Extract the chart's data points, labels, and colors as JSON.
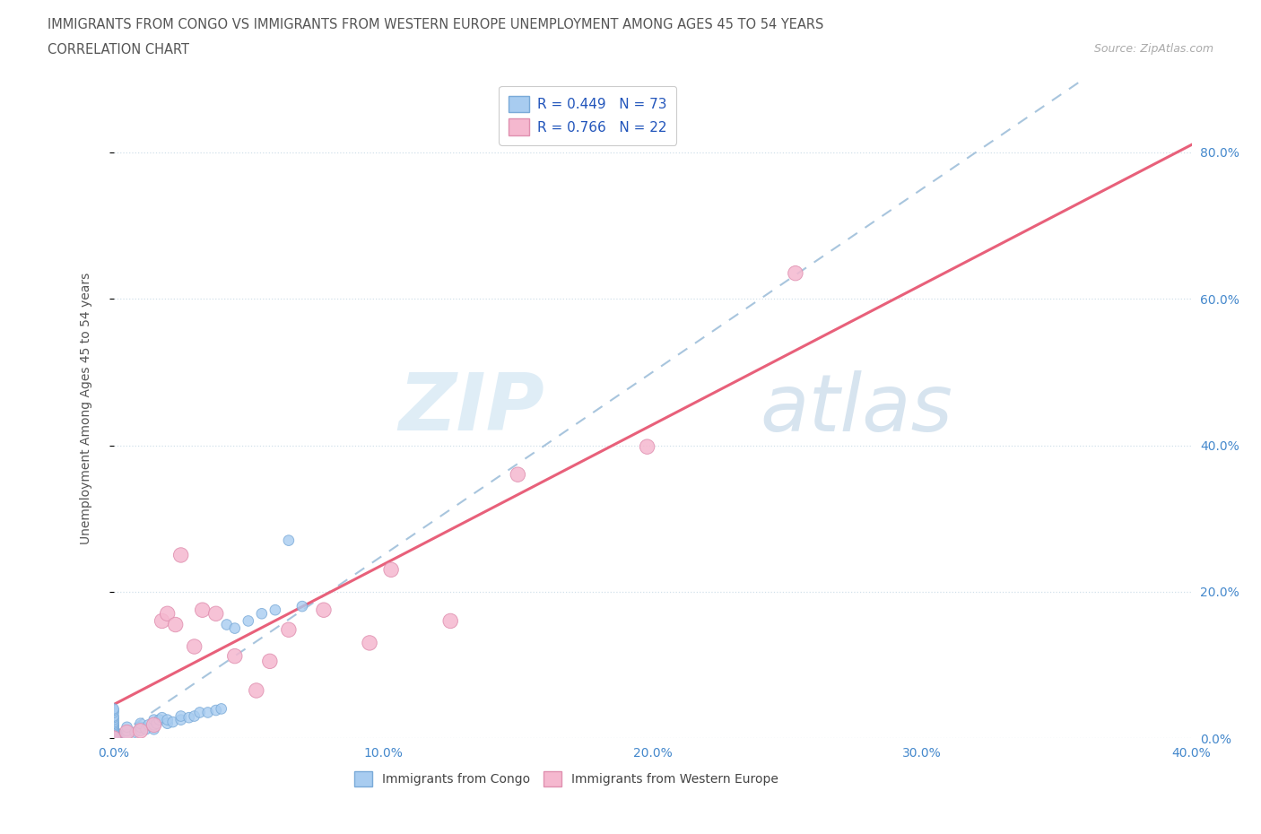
{
  "title_line1": "IMMIGRANTS FROM CONGO VS IMMIGRANTS FROM WESTERN EUROPE UNEMPLOYMENT AMONG AGES 45 TO 54 YEARS",
  "title_line2": "CORRELATION CHART",
  "source": "Source: ZipAtlas.com",
  "ylabel": "Unemployment Among Ages 45 to 54 years",
  "watermark_zip": "ZIP",
  "watermark_atlas": "atlas",
  "legend_r1": "0.449",
  "legend_n1": "73",
  "legend_r2": "0.766",
  "legend_n2": "22",
  "color_congo": "#a8ccf0",
  "color_congo_edge": "#7aaad8",
  "color_we": "#f5b8cf",
  "color_we_edge": "#e090b0",
  "color_line_congo": "#99bbd8",
  "color_line_we": "#e8607a",
  "color_axis": "#4488cc",
  "xmax": 0.4,
  "ymax": 0.9,
  "congo_x": [
    0.0,
    0.0,
    0.0,
    0.0,
    0.0,
    0.0,
    0.0,
    0.0,
    0.0,
    0.0,
    0.0,
    0.0,
    0.0,
    0.0,
    0.0,
    0.0,
    0.0,
    0.0,
    0.0,
    0.0,
    0.0,
    0.0,
    0.0,
    0.0,
    0.0,
    0.0,
    0.0,
    0.0,
    0.0,
    0.0,
    0.0,
    0.0,
    0.0,
    0.0,
    0.0,
    0.0,
    0.0,
    0.0,
    0.0,
    0.0,
    0.005,
    0.005,
    0.005,
    0.008,
    0.01,
    0.01,
    0.01,
    0.012,
    0.013,
    0.015,
    0.015,
    0.015,
    0.016,
    0.017,
    0.018,
    0.02,
    0.02,
    0.022,
    0.025,
    0.025,
    0.028,
    0.03,
    0.032,
    0.035,
    0.038,
    0.04,
    0.042,
    0.045,
    0.05,
    0.055,
    0.06,
    0.065,
    0.07
  ],
  "congo_y": [
    0.0,
    0.0,
    0.0,
    0.0,
    0.0,
    0.0,
    0.0,
    0.0,
    0.0,
    0.0,
    0.0,
    0.0,
    0.0,
    0.0,
    0.0,
    0.0,
    0.0,
    0.0,
    0.0,
    0.0,
    0.0,
    0.0,
    0.0,
    0.0,
    0.0,
    0.005,
    0.008,
    0.01,
    0.012,
    0.015,
    0.016,
    0.018,
    0.02,
    0.022,
    0.025,
    0.028,
    0.03,
    0.035,
    0.038,
    0.04,
    0.005,
    0.01,
    0.015,
    0.008,
    0.01,
    0.015,
    0.02,
    0.012,
    0.018,
    0.012,
    0.018,
    0.025,
    0.02,
    0.025,
    0.028,
    0.02,
    0.025,
    0.022,
    0.025,
    0.03,
    0.028,
    0.03,
    0.035,
    0.035,
    0.038,
    0.04,
    0.155,
    0.15,
    0.16,
    0.17,
    0.175,
    0.27,
    0.18
  ],
  "congo_size": [
    90,
    85,
    80,
    75,
    70,
    65,
    60,
    58,
    55,
    52,
    50,
    48,
    45,
    43,
    40,
    38,
    36,
    34,
    32,
    30,
    28,
    26,
    24,
    22,
    20,
    20,
    20,
    20,
    20,
    20,
    20,
    20,
    20,
    20,
    20,
    20,
    20,
    20,
    20,
    20,
    20,
    20,
    20,
    20,
    20,
    20,
    20,
    20,
    20,
    20,
    20,
    20,
    20,
    20,
    20,
    20,
    20,
    20,
    20,
    20,
    20,
    20,
    20,
    20,
    20,
    20,
    20,
    20,
    20,
    20,
    20,
    20,
    20
  ],
  "we_x": [
    0.0,
    0.005,
    0.01,
    0.015,
    0.018,
    0.02,
    0.023,
    0.025,
    0.03,
    0.033,
    0.038,
    0.045,
    0.053,
    0.058,
    0.065,
    0.078,
    0.095,
    0.103,
    0.125,
    0.15,
    0.198,
    0.253
  ],
  "we_y": [
    0.0,
    0.008,
    0.01,
    0.018,
    0.16,
    0.17,
    0.155,
    0.25,
    0.125,
    0.175,
    0.17,
    0.112,
    0.065,
    0.105,
    0.148,
    0.175,
    0.13,
    0.23,
    0.16,
    0.36,
    0.398,
    0.635
  ],
  "we_size": [
    28,
    28,
    28,
    28,
    28,
    28,
    28,
    28,
    28,
    28,
    28,
    28,
    28,
    28,
    28,
    28,
    28,
    28,
    28,
    28,
    28,
    28
  ],
  "yticks": [
    0.0,
    0.2,
    0.4,
    0.6,
    0.8
  ],
  "ytick_labels": [
    "0.0%",
    "20.0%",
    "40.0%",
    "60.0%",
    "80.0%"
  ],
  "xticks": [
    0.0,
    0.1,
    0.2,
    0.3,
    0.4
  ],
  "xtick_labels": [
    "0.0%",
    "10.0%",
    "20.0%",
    "30.0%",
    "40.0%"
  ],
  "legend1_label": "Immigrants from Congo",
  "legend2_label": "Immigrants from Western Europe"
}
